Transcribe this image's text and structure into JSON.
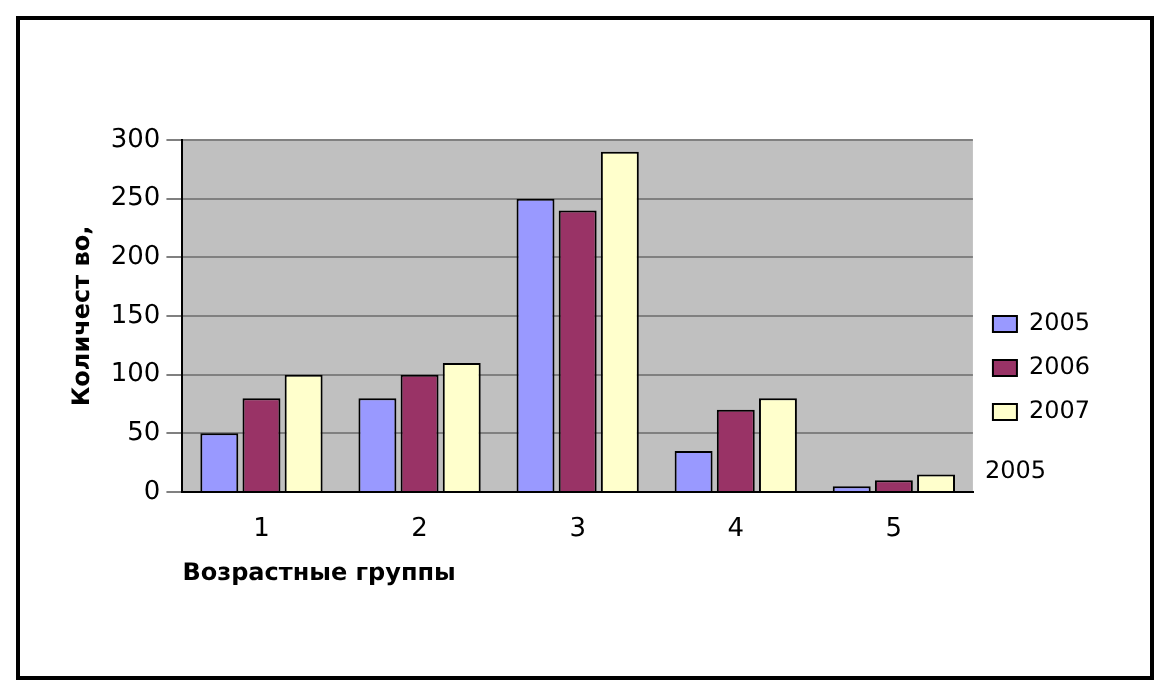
{
  "chart_data": {
    "type": "bar",
    "xlabel": "Возрастные группы",
    "ylabel": "Количест во,",
    "categories": [
      "1",
      "2",
      "3",
      "4",
      "5"
    ],
    "series": [
      {
        "name": "2005",
        "color": "#9999ff",
        "values": [
          50,
          80,
          250,
          35,
          5
        ]
      },
      {
        "name": "2006",
        "color": "#993366",
        "values": [
          80,
          100,
          240,
          70,
          10
        ]
      },
      {
        "name": "2007",
        "color": "#ffffcc",
        "values": [
          100,
          110,
          290,
          80,
          15
        ]
      }
    ],
    "ylim": [
      0,
      300
    ],
    "yticks": [
      0,
      50,
      100,
      150,
      200,
      250,
      300
    ],
    "grid": "y",
    "legend": "right",
    "annotations": [
      "2005"
    ]
  }
}
